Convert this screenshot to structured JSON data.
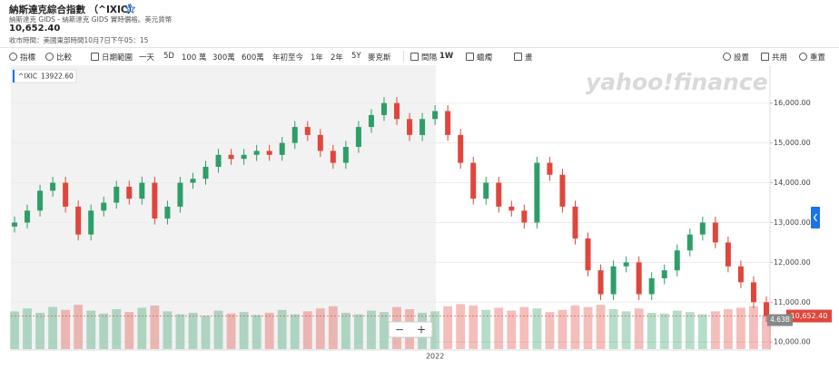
{
  "header": {
    "title": "納斯達克綜合指數 （^IXIC）",
    "subtitle": "納斯達克 GIDS - 納斯達克 GIDS 實時價格。美元貨幣",
    "price": "10,652.40",
    "close_time": "收市時間：美國東部時間10月7日下午05：15"
  },
  "toolbar": {
    "left": [
      "指標",
      "比較",
      "日期範圍",
      "一天",
      "5D",
      "100 萬",
      "300萬",
      "600萬",
      "年初至今",
      "1年",
      "2年",
      "5Y",
      "麥克斯"
    ],
    "interval_label": "間隔",
    "interval_value": "1W",
    "chart_style": "蠟燭",
    "draw": "畫",
    "right": [
      "設置",
      "共用",
      "重置"
    ]
  },
  "chart_data": {
    "type": "candlestick",
    "watermark": "yahoo!finance",
    "legend_value": "13922.60",
    "zoom": [
      "−",
      "+"
    ],
    "categories": [
      null,
      null,
      null,
      null,
      null,
      null,
      null,
      null,
      null,
      null,
      null,
      null,
      null,
      null,
      null,
      null,
      null,
      null,
      null,
      null,
      null,
      null,
      null,
      null,
      null,
      null,
      null,
      null,
      null,
      null,
      null,
      null,
      null,
      "2022",
      null,
      null,
      null,
      null,
      null,
      null,
      null,
      null,
      null,
      null,
      null,
      null,
      null,
      null,
      null,
      null,
      null,
      null,
      null,
      null,
      null,
      null,
      null,
      null,
      null,
      null
    ],
    "series": [
      {
        "name": "^IXIC",
        "up_color": "#2e9e68",
        "down_color": "#e0463c",
        "open": [
          12900,
          13000,
          13300,
          13800,
          14000,
          13400,
          12700,
          13300,
          13500,
          13900,
          13600,
          14000,
          13100,
          13400,
          14000,
          14100,
          14400,
          14700,
          14600,
          14700,
          14800,
          14700,
          15000,
          15400,
          15200,
          14800,
          14500,
          14900,
          15400,
          15700,
          16000,
          15600,
          15200,
          15600,
          15800,
          15200,
          14500,
          13600,
          14000,
          13400,
          13300,
          13000,
          14500,
          14200,
          13400,
          12600,
          11800,
          11200,
          11900,
          12000,
          11200,
          11600,
          11800,
          12300,
          12700,
          13000,
          12500,
          11900,
          11500,
          11000
        ],
        "high": [
          13150,
          13450,
          13950,
          14150,
          14150,
          13550,
          13450,
          13650,
          14050,
          14050,
          14150,
          14150,
          13550,
          14150,
          14250,
          14550,
          14850,
          14850,
          14850,
          14950,
          14950,
          15150,
          15550,
          15550,
          15350,
          14950,
          15050,
          15550,
          15850,
          16150,
          16150,
          15750,
          15750,
          15950,
          15950,
          15350,
          14650,
          14150,
          14150,
          13550,
          13450,
          14650,
          14650,
          14350,
          13550,
          12750,
          11950,
          12050,
          12150,
          12150,
          11750,
          11950,
          12450,
          12850,
          13150,
          13150,
          12650,
          12050,
          11650,
          11150
        ],
        "low": [
          12750,
          12850,
          13150,
          13650,
          13250,
          12550,
          12550,
          13150,
          13350,
          13450,
          13450,
          12950,
          12950,
          13250,
          13850,
          13950,
          14250,
          14450,
          14450,
          14550,
          14550,
          14550,
          14850,
          15050,
          14650,
          14350,
          14350,
          14750,
          15250,
          15550,
          15450,
          15050,
          15050,
          15450,
          15050,
          14350,
          13450,
          13450,
          13250,
          13150,
          12850,
          12850,
          14050,
          13250,
          12450,
          11650,
          11050,
          11050,
          11750,
          11050,
          11050,
          11450,
          11650,
          12150,
          12550,
          12350,
          11750,
          11350,
          10850,
          10500
        ],
        "close": [
          13000,
          13300,
          13800,
          14000,
          13400,
          12700,
          13300,
          13500,
          13900,
          13600,
          14000,
          13100,
          13400,
          14000,
          14100,
          14400,
          14700,
          14600,
          14700,
          14800,
          14700,
          15000,
          15400,
          15200,
          14800,
          14500,
          14900,
          15400,
          15700,
          16000,
          15600,
          15200,
          15600,
          15800,
          15200,
          14500,
          13600,
          14000,
          13400,
          13300,
          13000,
          14500,
          14200,
          13400,
          12600,
          11800,
          11200,
          11900,
          12000,
          11200,
          11600,
          11800,
          12300,
          12700,
          13000,
          12500,
          11900,
          11500,
          11000,
          10652.4
        ],
        "last_label": "10,652.40"
      }
    ],
    "volume": {
      "values": [
        5.2,
        5.6,
        5.0,
        5.8,
        5.4,
        6.1,
        5.3,
        4.9,
        5.5,
        5.1,
        5.7,
        6.0,
        5.2,
        4.8,
        5.0,
        4.6,
        5.3,
        4.9,
        5.1,
        4.7,
        5.0,
        5.4,
        4.8,
        5.2,
        5.6,
        5.9,
        5.0,
        4.8,
        5.3,
        5.1,
        5.8,
        5.5,
        5.0,
        5.2,
        5.9,
        6.2,
        6.0,
        5.4,
        5.7,
        5.3,
        5.8,
        5.6,
        5.1,
        5.4,
        6.0,
        5.8,
        6.1,
        5.5,
        5.2,
        5.6,
        5.0,
        4.9,
        5.3,
        5.1,
        4.8,
        5.2,
        5.5,
        5.7,
        5.9,
        4.63
      ],
      "last_label": "4.63B",
      "vlim": [
        0,
        6.5
      ]
    },
    "ylim": [
      9800,
      16950
    ],
    "yticks": [
      {
        "value": 10000,
        "label": "10,000.00"
      },
      {
        "value": 11000,
        "label": "11,000.00"
      },
      {
        "value": 12000,
        "label": "12,000.00"
      },
      {
        "value": 13000,
        "label": "13,000.00"
      },
      {
        "value": 14000,
        "label": "14,000.00"
      },
      {
        "value": 15000,
        "label": "15,000.00"
      },
      {
        "value": 16000,
        "label": "16,000.00"
      }
    ],
    "grid": true
  }
}
